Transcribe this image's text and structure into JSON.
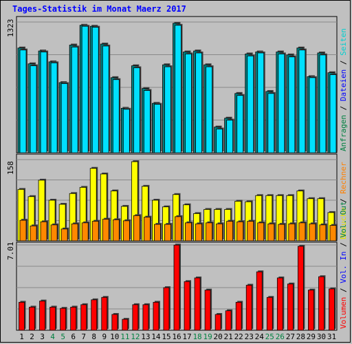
{
  "title": "Tages-Statistik im Monat Maerz 2017",
  "chart_data": [
    {
      "type": "bar",
      "panel": "top",
      "ymax_label": "1323",
      "ylim": [
        0,
        1323
      ],
      "right_label": [
        {
          "text": "Anfragen",
          "color": "#008040"
        },
        {
          "text": " / ",
          "color": "#000000"
        },
        {
          "text": "Dateien",
          "color": "#0000ff"
        },
        {
          "text": " / ",
          "color": "#000000"
        },
        {
          "text": "Seiten",
          "color": "#00d0d0"
        }
      ],
      "categories": [
        "1",
        "2",
        "3",
        "4",
        "5",
        "6",
        "7",
        "8",
        "9",
        "10",
        "11",
        "12",
        "13",
        "14",
        "15",
        "16",
        "17",
        "18",
        "19",
        "20",
        "21",
        "22",
        "23",
        "24",
        "25",
        "26",
        "27",
        "28",
        "29",
        "30",
        "31"
      ],
      "series": [
        {
          "name": "Anfragen",
          "color": "#008080",
          "values": [
            1060,
            900,
            1030,
            920,
            710,
            1090,
            1290,
            1280,
            1100,
            760,
            450,
            880,
            650,
            500,
            890,
            1310,
            1020,
            1030,
            890,
            260,
            350,
            600,
            1000,
            1020,
            620,
            1020,
            990,
            1060,
            770,
            1010,
            810
          ]
        },
        {
          "name": "Dateien",
          "color": "#00e0ff",
          "values": [
            1040,
            880,
            1020,
            910,
            700,
            1070,
            1280,
            1270,
            1080,
            740,
            440,
            860,
            630,
            490,
            870,
            1290,
            1000,
            1010,
            870,
            240,
            330,
            580,
            980,
            1010,
            600,
            1000,
            970,
            1040,
            760,
            990,
            790
          ]
        }
      ]
    },
    {
      "type": "bar",
      "panel": "middle",
      "ymax_label": "158",
      "ylim": [
        0,
        158
      ],
      "right_label": [
        {
          "text": "Besuche",
          "color": "#e0e000"
        },
        {
          "text": " / ",
          "color": "#000000"
        },
        {
          "text": "Rechner",
          "color": "#ff8000"
        }
      ],
      "categories": [
        "1",
        "2",
        "3",
        "4",
        "5",
        "6",
        "7",
        "8",
        "9",
        "10",
        "11",
        "12",
        "13",
        "14",
        "15",
        "16",
        "17",
        "18",
        "19",
        "20",
        "21",
        "22",
        "23",
        "24",
        "25",
        "26",
        "27",
        "28",
        "29",
        "30",
        "31"
      ],
      "series": [
        {
          "name": "Besuche",
          "color": "#ffff00",
          "values": [
            100,
            86,
            118,
            79,
            71,
            92,
            104,
            141,
            130,
            97,
            67,
            154,
            106,
            79,
            66,
            90,
            70,
            53,
            61,
            61,
            61,
            77,
            76,
            88,
            88,
            88,
            88,
            97,
            82,
            82,
            55
          ]
        },
        {
          "name": "Rechner",
          "color": "#ff8800",
          "values": [
            40,
            29,
            37,
            31,
            23,
            33,
            35,
            38,
            42,
            41,
            39,
            49,
            46,
            32,
            32,
            47,
            35,
            33,
            35,
            33,
            38,
            37,
            38,
            35,
            33,
            32,
            33,
            35,
            33,
            31,
            30
          ]
        }
      ]
    },
    {
      "type": "bar",
      "panel": "bottom",
      "ymax_label": "7.01",
      "ylim": [
        0,
        7.01
      ],
      "right_label": [
        {
          "text": "Volumen",
          "color": "#ff0000"
        },
        {
          "text": " / ",
          "color": "#000000"
        },
        {
          "text": "Vol. In",
          "color": "#0000ff"
        },
        {
          "text": " / ",
          "color": "#000000"
        },
        {
          "text": "Vol. Out",
          "color": "#008040"
        }
      ],
      "categories": [
        "1",
        "2",
        "3",
        "4",
        "5",
        "6",
        "7",
        "8",
        "9",
        "10",
        "11",
        "12",
        "13",
        "14",
        "15",
        "16",
        "17",
        "18",
        "19",
        "20",
        "21",
        "22",
        "23",
        "24",
        "25",
        "26",
        "27",
        "28",
        "29",
        "30",
        "31"
      ],
      "series": [
        {
          "name": "Volumen",
          "color": "#ff0000",
          "values": [
            2.3,
            1.9,
            2.4,
            1.9,
            1.8,
            1.9,
            2.1,
            2.5,
            2.7,
            1.3,
            0.9,
            2.1,
            2.1,
            2.3,
            3.5,
            7.0,
            4.0,
            4.3,
            3.3,
            1.3,
            1.6,
            2.3,
            3.7,
            4.8,
            2.7,
            4.3,
            3.8,
            6.9,
            3.3,
            4.4,
            3.4
          ]
        }
      ]
    }
  ],
  "x_tick_colors": [
    "#000000",
    "#000000",
    "#000000",
    "#008040",
    "#008040",
    "#000000",
    "#000000",
    "#000000",
    "#000000",
    "#000000",
    "#008040",
    "#008040",
    "#000000",
    "#000000",
    "#000000",
    "#000000",
    "#000000",
    "#008040",
    "#008040",
    "#000000",
    "#000000",
    "#000000",
    "#000000",
    "#000000",
    "#008040",
    "#008040",
    "#000000",
    "#000000",
    "#000000",
    "#000000",
    "#000000"
  ]
}
